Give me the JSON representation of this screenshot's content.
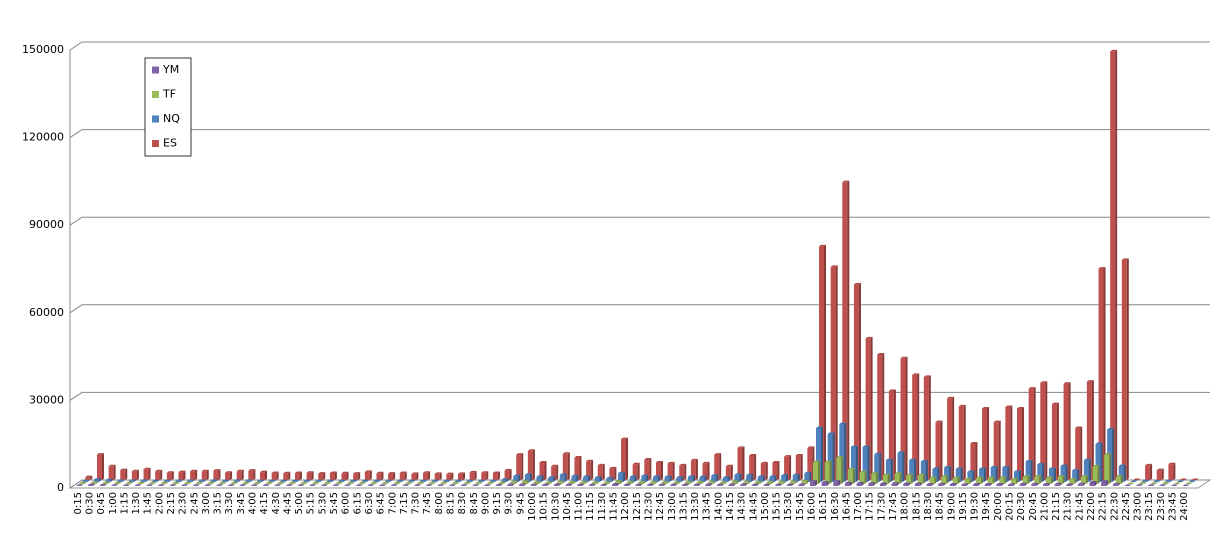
{
  "chart_data": {
    "type": "bar3d",
    "categories": [
      "0:15",
      "0:30",
      "0:45",
      "1:00",
      "1:15",
      "1:30",
      "1:45",
      "2:00",
      "2:15",
      "2:30",
      "2:45",
      "3:00",
      "3:15",
      "3:30",
      "3:45",
      "4:00",
      "4:15",
      "4:30",
      "4:45",
      "5:00",
      "5:15",
      "5:30",
      "5:45",
      "6:00",
      "6:15",
      "6:30",
      "6:45",
      "7:00",
      "7:15",
      "7:30",
      "7:45",
      "8:00",
      "8:15",
      "8:30",
      "8:45",
      "9:00",
      "9:15",
      "9:30",
      "9:45",
      "10:00",
      "10:15",
      "10:30",
      "10:45",
      "11:00",
      "11:15",
      "11:30",
      "11:45",
      "12:00",
      "12:15",
      "12:30",
      "12:45",
      "13:00",
      "13:15",
      "13:30",
      "13:45",
      "14:00",
      "14:15",
      "14:30",
      "14:45",
      "15:00",
      "15:15",
      "15:30",
      "15:45",
      "16:00",
      "16:15",
      "16:30",
      "16:45",
      "17:00",
      "17:15",
      "17:30",
      "17:45",
      "18:00",
      "18:15",
      "18:30",
      "18:45",
      "19:00",
      "19:15",
      "19:30",
      "19:45",
      "20:00",
      "20:15",
      "20:30",
      "20:45",
      "21:00",
      "21:15",
      "21:30",
      "21:45",
      "22:00",
      "22:15",
      "22:30",
      "22:45",
      "23:00",
      "23:15",
      "23:30",
      "23:45",
      "24:00"
    ],
    "series": [
      {
        "name": "YM",
        "color": "#7f63a8",
        "values": [
          100,
          300,
          200,
          100,
          100,
          100,
          100,
          100,
          100,
          100,
          100,
          100,
          100,
          100,
          100,
          100,
          100,
          100,
          100,
          100,
          100,
          100,
          100,
          100,
          100,
          100,
          100,
          100,
          100,
          100,
          100,
          100,
          100,
          100,
          100,
          100,
          200,
          400,
          400,
          300,
          300,
          400,
          300,
          300,
          200,
          200,
          500,
          300,
          300,
          300,
          300,
          300,
          300,
          300,
          400,
          300,
          400,
          400,
          300,
          300,
          300,
          300,
          400,
          1500,
          1200,
          1500,
          1000,
          900,
          800,
          700,
          800,
          700,
          700,
          500,
          600,
          500,
          400,
          500,
          500,
          500,
          400,
          600,
          600,
          500,
          600,
          400,
          600,
          1200,
          1500,
          600,
          0,
          100,
          100,
          100,
          0,
          0
        ]
      },
      {
        "name": "TF",
        "color": "#9bbb59",
        "values": [
          200,
          400,
          300,
          200,
          200,
          200,
          200,
          200,
          200,
          200,
          200,
          200,
          200,
          200,
          200,
          200,
          200,
          200,
          200,
          200,
          200,
          200,
          200,
          200,
          200,
          200,
          200,
          200,
          200,
          200,
          200,
          200,
          200,
          200,
          200,
          200,
          300,
          600,
          700,
          500,
          400,
          600,
          500,
          500,
          400,
          400,
          800,
          500,
          500,
          500,
          500,
          400,
          500,
          500,
          600,
          400,
          700,
          600,
          500,
          500,
          600,
          600,
          900,
          7500,
          7500,
          9000,
          5000,
          4000,
          3500,
          3000,
          3500,
          3000,
          3000,
          2000,
          2500,
          2000,
          1500,
          2000,
          2000,
          2000,
          1500,
          2500,
          2500,
          2000,
          2500,
          1500,
          2500,
          6000,
          10000,
          2500,
          0,
          200,
          100,
          200,
          0,
          0
        ]
      },
      {
        "name": "NQ",
        "color": "#4f81bd",
        "values": [
          300,
          800,
          600,
          400,
          400,
          400,
          300,
          300,
          400,
          400,
          400,
          400,
          300,
          400,
          400,
          300,
          300,
          300,
          300,
          300,
          300,
          300,
          300,
          300,
          300,
          300,
          300,
          300,
          300,
          300,
          300,
          300,
          300,
          300,
          300,
          300,
          800,
          2000,
          2500,
          1800,
          1500,
          2500,
          2000,
          1800,
          1500,
          1300,
          3000,
          1700,
          2000,
          1800,
          1700,
          1500,
          1800,
          1700,
          2200,
          1500,
          2500,
          2300,
          1800,
          1800,
          2200,
          2300,
          3000,
          18500,
          16500,
          19800,
          12000,
          12000,
          9500,
          7500,
          10000,
          7500,
          7000,
          4500,
          5000,
          4500,
          3500,
          4500,
          5000,
          5000,
          3500,
          7000,
          6000,
          4500,
          5500,
          4000,
          7500,
          13000,
          18000,
          5500,
          0,
          300,
          200,
          300,
          0,
          0
        ]
      },
      {
        "name": "ES",
        "color": "#c0504d",
        "values": [
          1000,
          8700,
          4700,
          3400,
          3000,
          3700,
          3000,
          2500,
          2700,
          3000,
          3000,
          3200,
          2500,
          3000,
          3200,
          2700,
          2400,
          2300,
          2400,
          2500,
          2200,
          2400,
          2300,
          2200,
          2800,
          2300,
          2200,
          2400,
          2100,
          2500,
          2100,
          2000,
          2100,
          2600,
          2500,
          2400,
          3300,
          8700,
          10000,
          6000,
          4700,
          9000,
          7700,
          6400,
          5000,
          4000,
          14000,
          5400,
          7000,
          6000,
          5700,
          5000,
          6700,
          5700,
          8700,
          4700,
          11000,
          8400,
          5700,
          6000,
          8000,
          8400,
          11000,
          80000,
          73000,
          102000,
          67000,
          48500,
          43000,
          30500,
          41700,
          36000,
          35300,
          19800,
          28000,
          25200,
          12500,
          24500,
          19800,
          25000,
          24500,
          31300,
          33300,
          26000,
          33000,
          17800,
          33700,
          72400,
          146800,
          75400,
          0,
          5000,
          3400,
          5400,
          0,
          0
        ]
      }
    ],
    "ylim": [
      0,
      150000
    ],
    "yticks": [
      0,
      30000,
      60000,
      90000,
      120000,
      150000
    ],
    "grid": true,
    "legend": "top-left"
  }
}
